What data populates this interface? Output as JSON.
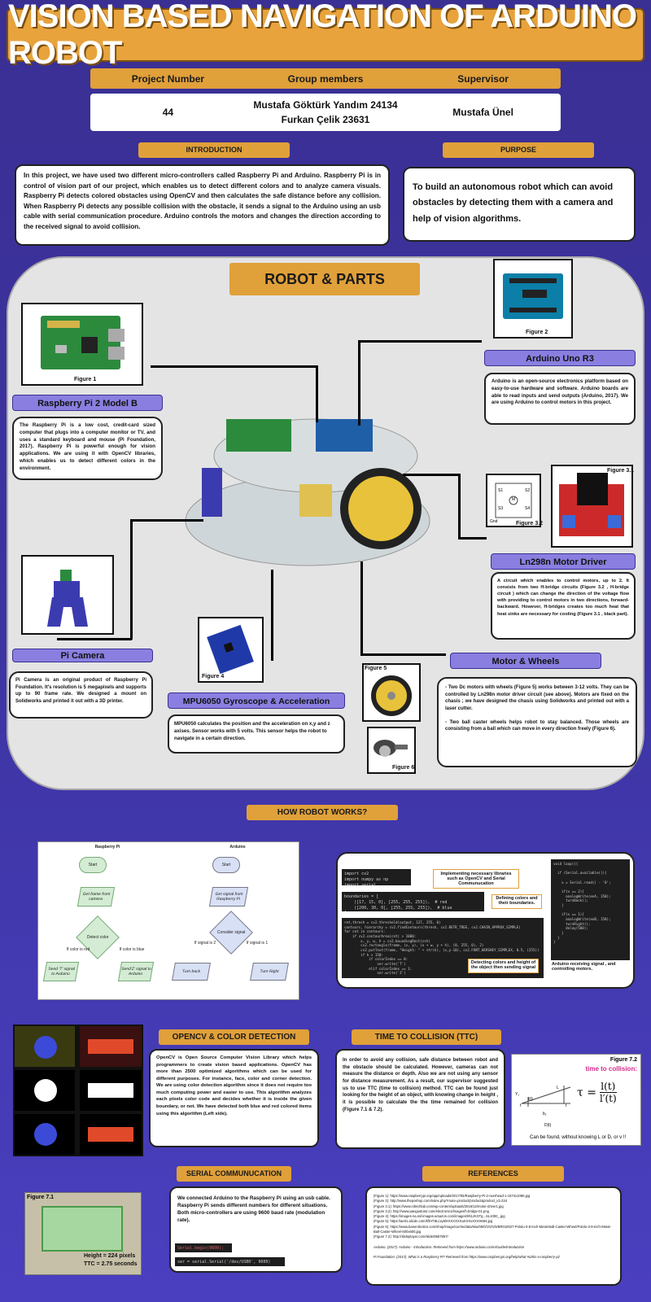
{
  "title": "VISION BASED NAVIGATION OF ARDUINO ROBOT",
  "header": {
    "col1": "Project Number",
    "col2": "Group members",
    "col3": "Supervisor",
    "project_number": "44",
    "member1": "Mustafa Göktürk Yandım 24134",
    "member2": "Furkan Çelik 23631",
    "supervisor": "Mustafa Ünel"
  },
  "introduction": {
    "label": "INTRODUCTION",
    "text": "In this project, we have used two different micro-controllers called Raspberry Pi and Arduino. Raspberry Pi is in control of vision part of our project, which enables us to detect different colors and to analyze camera visuals.  Raspberry Pi detects colored obstacles using OpenCV and then calculates the safe distance before any collision. When Raspberry Pi detects any possible collision with the obstacle, it sends a signal to the Arduino using an usb cable with serial communication procedure.  Arduino controls the motors and changes the direction according to the received signal to avoid collision."
  },
  "purpose": {
    "label": "PURPOSE",
    "text": "To build an autonomous robot which can avoid obstacles by detecting them with a  camera and help of vision algorithms."
  },
  "robot_parts": {
    "title": "ROBOT & PARTS",
    "figure1": "Figure 1",
    "figure2": "Figure 2",
    "figure31": "Figure 3.1",
    "figure32": "Figure 3.2",
    "figure4": "Figure 4",
    "figure5": "Figure 5",
    "figure6": "Figure 6",
    "rpi_label": "Raspberry Pi 2 Model B",
    "rpi_text": "The Raspberry Pi is a low cost, credit-card sized computer that plugs into a computer monitor or TV, and uses a standard keyboard and mouse (Pi Foundation, 2017).  Raspberry Pi is powerful enough for vision applications. We are using it  with OpenCV libraries, which enables us to detect different colors in the environment.",
    "arduino_label": "Arduino Uno R3",
    "arduino_text": "Arduino is an open-source electronics platform based on easy-to-use hardware and software. Arduino boards are able to read inputs and send outputs (Arduino, 2017).  We are using Arduino to control motors in this project.",
    "motor_driver_label": "Ln298n Motor Driver",
    "motor_driver_text": "A circuit which enables to control motors, up to 2. It consists from two H-bridge circuits (Figure 3.2 , H-bridge circuit ) which can change the direction of the voltage flow with providing to control motors in two directions, forward-backward. However, H-bridges creates too much heat that heat sinks are necessary for cooling (Figure 3.1 , black part).",
    "camera_label": "Pi Camera",
    "camera_text": "Pi Camera is an original product of Raspberry Pi Foundation. It's resolution is 5 megapixels and supports up to 90 frame rate. We designed a mount on Solidworks and printed it out with a 3D printer.",
    "mpu_label": "MPU6050 Gyroscope & Acceleration",
    "mpu_text": "MPU6050 calculates the position and the acceleration on x,y and z axises. Sensor works with 5 volts. This sensor helps the robot to navigate in a certain direction.",
    "motor_label": "Motor & Wheels",
    "motor_text1": "- Two Dc motors with wheels (Figure 5) works between 3-12 volts. They can be controlled by Ln298n motor driver circuit (see above). Motors are fixed on the chasis ; we have designed the chasis using Solidworks and printed out with a laser cutter.",
    "motor_text2": "- Two ball caster wheels helps robot to stay balanced. Those wheels are consisting from a ball which can move in every direction  freely (Figure 6).",
    "hbridge_labels": [
      "S1",
      "S2",
      "S3",
      "S4",
      "M",
      "Gnd"
    ]
  },
  "how_works": {
    "label": "HOW ROBOT WORKS?",
    "rpi_col": "Raspberry Pi",
    "ard_col": "Arduino",
    "nodes": {
      "start1": "Start",
      "get_frame": "Get frame from camera",
      "detect": "Detect color",
      "if_red": "If color is red",
      "if_blue": "If color is blue",
      "send_t": "Send 'T' signal to Arduino",
      "send_z": "Send'Z' signal to Arduino",
      "start2": "Start",
      "get_signal": "Get signal from Raspberry Pi",
      "consider": "Consider signal",
      "if_2": "If signal is 2",
      "if_1": "If signal is 1",
      "turn_back": "Turn back",
      "turn_right": "Turn Right"
    },
    "note_libs": "Implementing necessary libraries such as OpenCV and Serial Communucation",
    "note_colors": "Defining  colors  and their boundaries.",
    "note_detect": "Detecting colors and height of the object then sending signal",
    "note_arduino": "Arduino receiving signal , and controlling motors.",
    "code_imports": "import cv2\nimport numpy as np\nimport serial",
    "code_bounds": "boundaries = [\n    ([17, 15, 0], [255, 255, 255]),  # red\n    ([200, 30, 0], [255, 255, 255]),  # blue\n]",
    "code_main": "ret,thresh = cv2.threshold(output, 127, 255, 0)\ncontours, hierarchy = cv2.findContours(thresh, cv2.RETR_TREE, cv2.CHAIN_APPROX_SIMPLE)\nfor cnt in contours:\n    if cv2.contourArea(cnt) > 1000:\n        x, y, w, h = cv2.boundingRect(cnt)\n        cv2.rectangle(frame, (x, y), (x + w, y + h), (0, 255, 0), 2)\n        cv2.putText(frame, \"Height: \" + str(h), (x,y-10), cv2.FONT_HERSHEY_SIMPLEX, 0.5, (255))\n        if h > 150:\n            if colorIndex == 0:\n                ser.write('T')\n            elif colorIndex == 1:\n                ser.write('Z')",
    "code_arduino": "void loop(){\n\n  if (Serial.available()){\n\n    x = Serial.read() - '0';\n\n    if(x == 2){\n      analogWrite(enA, 150);\n      turnBack();\n    }\n\n    if(x == 1){\n      analogWrite(enB, 150);\n      turnRight();\n      delay(500);\n    }\n  }\n}"
  },
  "opencv": {
    "label": "OPENCV & COLOR DETECTION",
    "text": "OpenCV is Open Source Computer Vision Library which helps programmers to create vision based applications. OpenCV has more than 2500 optimized algorithms which can be used for different purposes. For instance, face, color and corner detection. We are using color detection algorithm since it does not require too much computing power and easier to use. This algorithm analyzes each pixels color code and decides whether it is inside the given boundary, or not.  We have detected both blue and red colored items using this algorithm (Left side)."
  },
  "ttc": {
    "label": "TIME TO COLLISION (TTC)",
    "text": "In order to avoid any collision, safe distance between robot and the obstacle should be calculated. However, cameras can not measure the distance or depth. Also we are not using any sensor for distance measurement. As a result, our supervisor suggested us to use TTC (time to collision) method. TTC can be found just looking for the height of an object, with knowing change in height , it is possible to calculate the the time remained for collision (Figure 7.1 & 7.2).",
    "figure72": "Figure 7.2",
    "ttc_title": "time to collision:",
    "formula_tau": "τ =",
    "formula_num": "l(t)",
    "formula_den": "l′(t)",
    "formula_note": "Can be found, without knowing L or D, or v !!",
    "diagram_labels": [
      "f",
      "L",
      "l(t)",
      "D(t)",
      "b₁",
      "t",
      "Y₁"
    ]
  },
  "serial": {
    "label": "SERIAL COMMUNUCATION",
    "text": "We connected Arduino to the Raspberry Pi using an usb cable. Raspberry Pi sends different numbers for different situations. Both micro-controllers are using 9600 baud rate (modulation rate).",
    "code1": "Serial.begin(9600);",
    "code2": "ser = serial.Serial('/dev/USB0', 9600)",
    "figure71": "Figure 7.1",
    "height": "Height = 224 pixels",
    "ttc_val": "TTC = 2.75 seconds"
  },
  "references": {
    "label": "REFERENCES",
    "items": [
      "(Figure 1): https://www.raspberrypi.org/app/uploads/2017/05/Raspberry-Pi-2-overhead-1-1574x1080.jpg",
      "(Figure 2): http://www.theposhop.com/index.php?route=product/product&product_id=224",
      "(Figure 3.1): https://www.ciltechlab.com/wp-content/uploads/2016/12/motor-driver1.jpg",
      "(Figure 3.2): http://www.pangustutor.com/electronics/images/h-bridge-01.png",
      "(Figure 4): https://images-na.ssl-images-amazon.com/images/I/61zKSTg...SL1000_.jpg",
      "(Figure 5): https://ae01.alicdn.com/kf/HT8Lcxy5lXXXXXXXaXXXxXXXX694.jpg",
      "(Figure 6): https://www.banerobotics.com/shop/image/cache/data/sku/08/0/1/0/1/5/BR010027-Pololu-3-8-Inch-Metal-Ball-Caster-Wheel/Pololu-3-8-Inch-Metal-Ball-Caster-Wheel-600x600.jpg",
      "(Figure 7.2): http://slideplayer.com/slide/8567857/"
    ],
    "cite1": "Arduino. (2017). Arduino - Introduction. Retrieved from https://www.arduino.cc/en/Guide/Introduction",
    "cite2": "Pi Foundation. (2017). What is a Raspberry Pi? Retrieved from https://www.raspberrypi.org/help/what-%20is-a-raspberry-pi/"
  },
  "colors": {
    "background": "#3d34a3",
    "gold": "#e0a03a",
    "violet": "#8a7fe0"
  }
}
